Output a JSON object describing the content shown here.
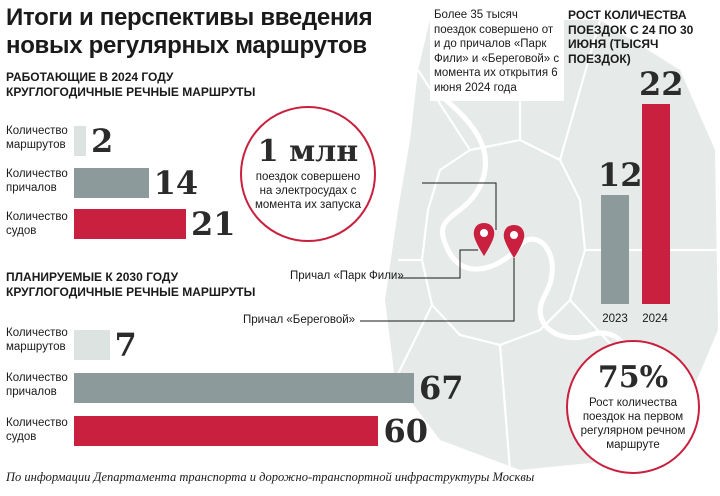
{
  "title": "Итоги и перспективы введения новых регулярных маршрутов",
  "section_2024": "Работающие в 2024 году круглогодичные речные маршруты",
  "section_2030": "Планируемые к 2030 году круглогодичные речные маршруты",
  "center_badge": {
    "big": "1 млн",
    "text": "поездок совершено на электросудах с момента их запуска"
  },
  "fili_note": "Более 35 тысяч поездок совершено от и до причалов «Парк Фили» и «Береговой» с момента их открытия 6 июня 2024 года",
  "growth_title": "Рост количества поездок с 24 по 30 июня (тысяч поездок)",
  "growth_badge": {
    "big": "75%",
    "text": "Рост количества поездок на первом регулярном речном маршруте"
  },
  "map_labels": {
    "park_fili": "Причал «Парк Фили»",
    "beregovoy": "Причал «Береговой»"
  },
  "footer": "По информации Департамента транспорта и дорожно-транспортной инфраструктуры Москвы",
  "colors": {
    "light": "#dde3e0",
    "gray": "#8c9a9b",
    "red": "#c8203e",
    "map": "#e6eae8"
  },
  "chart_data": [
    {
      "type": "bar",
      "title": "Работающие в 2024 году круглогодичные речные маршруты",
      "categories": [
        "Количество маршрутов",
        "Количество причалов",
        "Количество судов"
      ],
      "values": [
        2,
        14,
        21
      ],
      "value_labels": [
        "2",
        "14",
        "21"
      ],
      "orientation": "horizontal"
    },
    {
      "type": "bar",
      "title": "Планируемые к 2030 году круглогодичные речные маршруты",
      "categories": [
        "Количество маршрутов",
        "Количество причалов",
        "Количество судов"
      ],
      "values": [
        7,
        67,
        60
      ],
      "value_labels": [
        "7",
        "67",
        "60"
      ],
      "orientation": "horizontal"
    },
    {
      "type": "bar",
      "title": "Рост количества поездок с 24 по 30 июня (тысяч поездок)",
      "categories": [
        "2023",
        "2024"
      ],
      "values": [
        12,
        22
      ],
      "value_labels": [
        "12",
        "22"
      ],
      "orientation": "vertical"
    }
  ]
}
